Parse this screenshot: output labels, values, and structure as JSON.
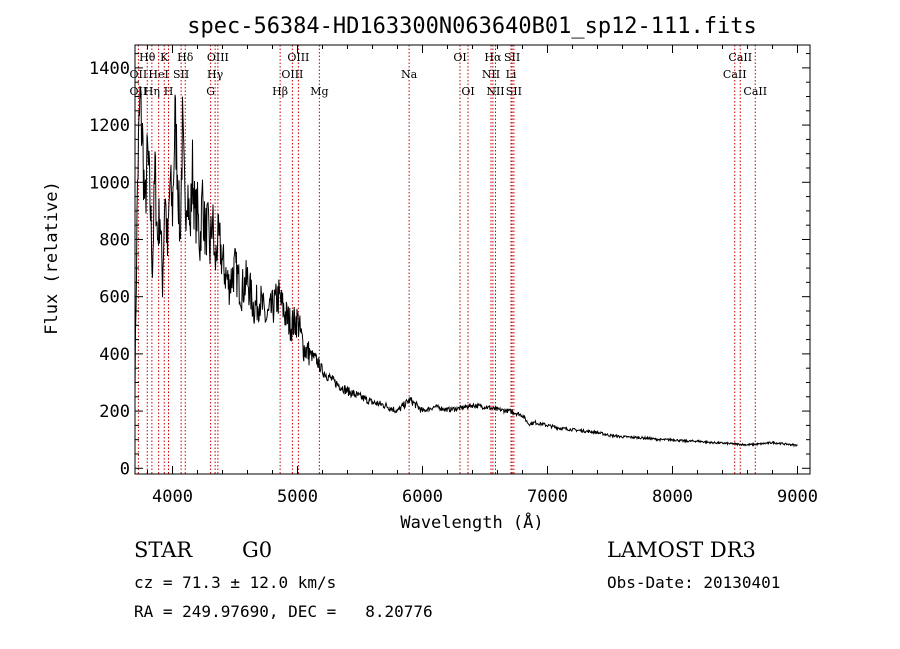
{
  "chart_data": {
    "type": "line",
    "title": "spec-56384-HD163300N063640B01_sp12-111.fits",
    "xlabel": "Wavelength (Å)",
    "ylabel": "Flux (relative)",
    "xlim": [
      3700,
      9100
    ],
    "ylim": [
      -20,
      1480
    ],
    "x_ticks": [
      4000,
      5000,
      6000,
      7000,
      8000,
      9000
    ],
    "y_ticks": [
      0,
      200,
      400,
      600,
      800,
      1000,
      1200,
      1400
    ],
    "x_tick_labels": [
      "4000",
      "5000",
      "6000",
      "7000",
      "8000",
      "9000"
    ],
    "y_tick_labels": [
      "0",
      "200",
      "400",
      "600",
      "800",
      "1000",
      "1200",
      "1400"
    ],
    "line_color": "#000000",
    "marker_color": "#cc0000",
    "series": [
      {
        "name": "spectrum",
        "x": [
          3700,
          3720,
          3740,
          3760,
          3780,
          3800,
          3820,
          3840,
          3860,
          3880,
          3900,
          3920,
          3940,
          3960,
          3980,
          4000,
          4020,
          4040,
          4060,
          4080,
          4100,
          4120,
          4140,
          4160,
          4180,
          4200,
          4220,
          4240,
          4260,
          4280,
          4300,
          4320,
          4340,
          4360,
          4380,
          4400,
          4450,
          4500,
          4550,
          4600,
          4650,
          4700,
          4750,
          4800,
          4850,
          4900,
          4950,
          5000,
          5050,
          5100,
          5150,
          5200,
          5300,
          5400,
          5500,
          5600,
          5700,
          5800,
          5900,
          6000,
          6100,
          6200,
          6300,
          6400,
          6500,
          6600,
          6700,
          6800,
          6850,
          6900,
          7000,
          7100,
          7200,
          7300,
          7400,
          7500,
          7600,
          7700,
          7800,
          7900,
          8000,
          8100,
          8200,
          8300,
          8400,
          8500,
          8600,
          8700,
          8800,
          8900,
          9000
        ],
        "y": [
          300,
          1000,
          1280,
          1150,
          900,
          1100,
          950,
          700,
          1050,
          800,
          900,
          650,
          980,
          750,
          1000,
          900,
          1220,
          1050,
          800,
          1180,
          900,
          1000,
          820,
          1050,
          880,
          900,
          780,
          960,
          820,
          850,
          760,
          880,
          700,
          800,
          780,
          720,
          640,
          700,
          620,
          660,
          560,
          590,
          520,
          560,
          600,
          540,
          500,
          520,
          420,
          400,
          380,
          340,
          300,
          270,
          250,
          230,
          220,
          200,
          240,
          200,
          215,
          205,
          210,
          220,
          215,
          205,
          200,
          185,
          155,
          160,
          150,
          140,
          135,
          130,
          125,
          115,
          110,
          108,
          105,
          100,
          100,
          95,
          95,
          90,
          88,
          85,
          82,
          85,
          90,
          85,
          80
        ]
      }
    ],
    "line_labels": [
      {
        "text": "Hθ",
        "wave": 3798,
        "row": 1
      },
      {
        "text": "OII",
        "wave": 3727,
        "row": 2
      },
      {
        "text": "OII",
        "wave": 3727,
        "row": 3
      },
      {
        "text": "K",
        "wave": 3934,
        "row": 1
      },
      {
        "text": "HeI",
        "wave": 3889,
        "row": 2
      },
      {
        "text": "Hη",
        "wave": 3835,
        "row": 3
      },
      {
        "text": "Hδ",
        "wave": 4102,
        "row": 1
      },
      {
        "text": "SII",
        "wave": 4069,
        "row": 2
      },
      {
        "text": "H",
        "wave": 3968,
        "row": 3
      },
      {
        "text": "OIII",
        "wave": 4363,
        "row": 1
      },
      {
        "text": "Hγ",
        "wave": 4341,
        "row": 2
      },
      {
        "text": "G",
        "wave": 4305,
        "row": 3
      },
      {
        "text": "OIII",
        "wave": 5007,
        "row": 1
      },
      {
        "text": "OIII",
        "wave": 4959,
        "row": 2
      },
      {
        "text": "Hβ",
        "wave": 4861,
        "row": 3
      },
      {
        "text": "Mg",
        "wave": 5175,
        "row": 3
      },
      {
        "text": "Na",
        "wave": 5893,
        "row": 2
      },
      {
        "text": "OI",
        "wave": 6300,
        "row": 1
      },
      {
        "text": "OI",
        "wave": 6364,
        "row": 3
      },
      {
        "text": "Hα",
        "wave": 6563,
        "row": 1
      },
      {
        "text": "SII",
        "wave": 6717,
        "row": 1
      },
      {
        "text": "NII",
        "wave": 6548,
        "row": 2
      },
      {
        "text": "Li",
        "wave": 6708,
        "row": 2
      },
      {
        "text": "NII",
        "wave": 6584,
        "row": 3
      },
      {
        "text": "SII",
        "wave": 6731,
        "row": 3
      },
      {
        "text": "CaII",
        "wave": 8542,
        "row": 1
      },
      {
        "text": "CaII",
        "wave": 8498,
        "row": 2
      },
      {
        "text": "CaII",
        "wave": 8662,
        "row": 3
      }
    ],
    "marker_lines": [
      3727,
      3798,
      3835,
      3889,
      3934,
      3968,
      4069,
      4102,
      4305,
      4341,
      4363,
      4861,
      4959,
      5007,
      5175,
      5893,
      6300,
      6364,
      6548,
      6563,
      6584,
      6708,
      6717,
      6731,
      8498,
      8542,
      8662
    ]
  },
  "info": {
    "object_class": "STAR",
    "subclass": "G0",
    "survey": "LAMOST DR3",
    "cz": "cz = 71.3 ± 12.0 km/s",
    "obs_date": "Obs-Date: 20130401",
    "coords": "RA = 249.97690, DEC =   8.20776"
  }
}
